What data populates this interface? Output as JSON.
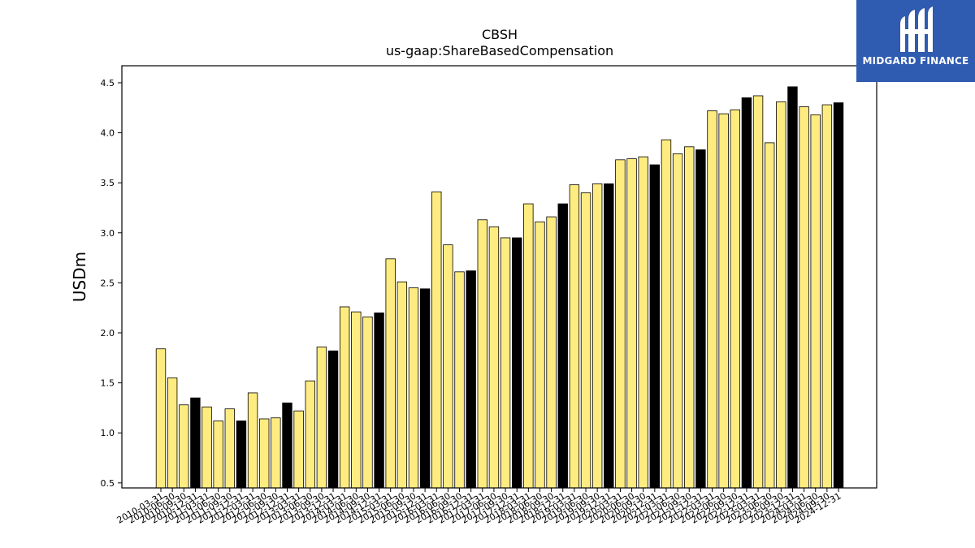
{
  "chart_data": {
    "type": "bar",
    "title": "CBSH",
    "subtitle": "us-gaap:ShareBasedCompensation",
    "ylabel": "USDm",
    "xlabel": "",
    "ylim": [
      0.45,
      4.67
    ],
    "yticks": [
      "0.5",
      "1.0",
      "1.5",
      "2.0",
      "2.5",
      "3.0",
      "3.5",
      "4.0",
      "4.5"
    ],
    "grid": false,
    "legend": "none",
    "colors": {
      "quarter": "#ffec80",
      "year_end": "#000000",
      "edge": "#000000"
    },
    "categories": [
      "2010-03-31",
      "2010-06-30",
      "2010-09-30",
      "2010-12-31",
      "2011-03-31",
      "2011-06-30",
      "2011-09-30",
      "2011-12-31",
      "2012-03-31",
      "2012-06-30",
      "2012-09-30",
      "2012-12-31",
      "2013-03-31",
      "2013-06-30",
      "2013-09-30",
      "2013-12-31",
      "2014-03-31",
      "2014-06-30",
      "2014-09-30",
      "2014-12-31",
      "2015-03-31",
      "2015-06-30",
      "2015-09-30",
      "2015-12-31",
      "2016-03-31",
      "2016-06-30",
      "2016-09-30",
      "2016-12-31",
      "2017-03-31",
      "2017-06-30",
      "2017-09-30",
      "2017-12-31",
      "2018-03-31",
      "2018-06-30",
      "2018-09-30",
      "2018-12-31",
      "2019-03-31",
      "2019-06-30",
      "2019-09-30",
      "2019-12-31",
      "2020-03-31",
      "2020-06-30",
      "2020-09-30",
      "2020-12-31",
      "2021-03-31",
      "2021-06-30",
      "2021-09-30",
      "2021-12-31",
      "2022-03-31",
      "2022-06-30",
      "2022-09-30",
      "2022-12-31",
      "2023-03-31",
      "2023-06-30",
      "2023-09-30",
      "2023-12-31",
      "2024-03-31",
      "2024-06-30",
      "2024-09-30",
      "2024-12-31"
    ],
    "values": [
      1.84,
      1.55,
      1.28,
      1.35,
      1.26,
      1.12,
      1.24,
      1.12,
      1.4,
      1.14,
      1.15,
      1.3,
      1.22,
      1.52,
      1.86,
      1.82,
      2.26,
      2.21,
      2.16,
      2.2,
      2.74,
      2.51,
      2.45,
      2.44,
      3.41,
      2.88,
      2.61,
      2.62,
      3.13,
      3.06,
      2.95,
      2.95,
      3.29,
      3.11,
      3.16,
      3.29,
      3.48,
      3.4,
      3.49,
      3.49,
      3.73,
      3.74,
      3.76,
      3.68,
      3.93,
      3.79,
      3.86,
      3.83,
      4.22,
      4.19,
      4.23,
      4.35,
      4.37,
      3.9,
      4.31,
      4.46,
      4.26,
      4.18,
      4.28,
      4.3
    ],
    "year_end": [
      false,
      false,
      false,
      true,
      false,
      false,
      false,
      true,
      false,
      false,
      false,
      true,
      false,
      false,
      false,
      true,
      false,
      false,
      false,
      true,
      false,
      false,
      false,
      true,
      false,
      false,
      false,
      true,
      false,
      false,
      false,
      true,
      false,
      false,
      false,
      true,
      false,
      false,
      false,
      true,
      false,
      false,
      false,
      true,
      false,
      false,
      false,
      true,
      false,
      false,
      false,
      true,
      false,
      false,
      false,
      true,
      false,
      false,
      false,
      true
    ]
  },
  "logo": {
    "brand_name": "MIDGARD FINANCE",
    "icon": "midgard-logo-icon",
    "background": "#2f5bb0"
  }
}
